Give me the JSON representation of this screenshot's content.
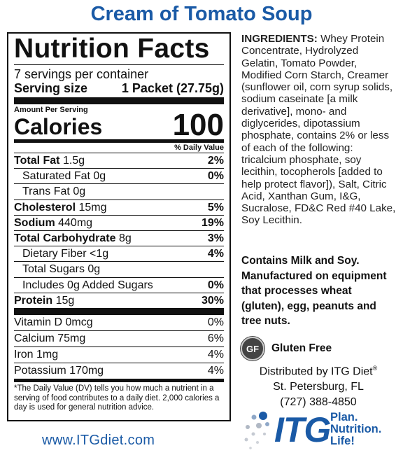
{
  "product_title": "Cream of Tomato Soup",
  "nutrition": {
    "header": "Nutrition Facts",
    "servings_per_container": "7 servings per container",
    "serving_size_label": "Serving size",
    "serving_size_value": "1 Packet (27.75g)",
    "amount_per_serving": "Amount Per Serving",
    "calories_label": "Calories",
    "calories_value": "100",
    "dv_header": "% Daily Value",
    "rows": [
      {
        "label": "Total Fat",
        "amount": "1.5g",
        "dv": "2%"
      },
      {
        "label": "Saturated Fat 0g",
        "amount": "",
        "dv": "0%"
      },
      {
        "label": "Trans Fat 0g",
        "amount": "",
        "dv": ""
      },
      {
        "label": "Cholesterol",
        "amount": "15mg",
        "dv": "5%"
      },
      {
        "label": "Sodium",
        "amount": "440mg",
        "dv": "19%"
      },
      {
        "label": "Total Carbohydrate",
        "amount": "8g",
        "dv": "3%"
      },
      {
        "label": "Dietary Fiber <1g",
        "amount": "",
        "dv": "4%"
      },
      {
        "label": "Total Sugars 0g",
        "amount": "",
        "dv": ""
      },
      {
        "label": "Includes 0g Added Sugars",
        "amount": "",
        "dv": "0%"
      },
      {
        "label": "Protein",
        "amount": "15g",
        "dv": "30%"
      }
    ],
    "vitamins": [
      {
        "label": "Vitamin D 0mcg",
        "dv": "0%"
      },
      {
        "label": "Calcium 75mg",
        "dv": "6%"
      },
      {
        "label": "Iron 1mg",
        "dv": "4%"
      },
      {
        "label": "Potassium 170mg",
        "dv": "4%"
      }
    ],
    "footnote": "*The Daily Value (DV) tells you how much a nutrient in a serving of food contributes to a daily diet. 2,000 calories a day is used for general nutrition advice."
  },
  "ingredients": {
    "label": "INGREDIENTS:",
    "text": " Whey Protein Concentrate, Hydrolyzed Gelatin, Tomato Powder, Modified Corn Starch, Creamer (sunflower oil, corn syrup solids, sodium caseinate [a milk derivative], mono- and diglycerides, dipotassium phosphate, contains 2% or less of each of the following: tricalcium phosphate, soy lecithin, tocopherols [added to help protect flavor]), Salt, Citric Acid, Xanthan Gum, I&G, Sucralose, FD&C Red #40 Lake, Soy Lecithin."
  },
  "allergen": "Contains Milk and Soy. Manufactured on equipment that processes wheat (gluten), egg, peanuts and tree nuts.",
  "gluten_free": {
    "badge": "GF",
    "label": "Gluten Free"
  },
  "distributor": {
    "line1": "Distributed by ITG Diet",
    "reg": "®",
    "line2": "St. Petersburg, FL",
    "phone": "(727) 388-4850"
  },
  "website": "www.ITGdiet.com",
  "logo": {
    "name": "ITG",
    "tagline": [
      "Plan.",
      "Nutrition.",
      "Life!"
    ]
  },
  "colors": {
    "brand_blue": "#1a5aa6",
    "text": "#111111"
  }
}
